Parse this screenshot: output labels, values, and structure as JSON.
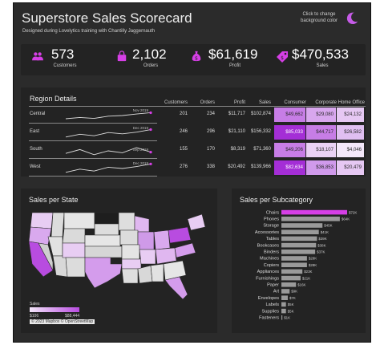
{
  "header": {
    "title": "Superstore Sales Scorecard",
    "subtitle": "Designed during Lovelytics training with Chantilly Jaggernauth",
    "bg_note": "Click to change background color"
  },
  "colors": {
    "accent": "#d63fe6",
    "panel": "#232323",
    "background": "#2b2b2b"
  },
  "kpis": [
    {
      "icon": "people-icon",
      "value": "573",
      "label": "Customers"
    },
    {
      "icon": "shopping-bag-icon",
      "value": "2,102",
      "label": "Orders"
    },
    {
      "icon": "money-bag-icon",
      "value": "$61,619",
      "label": "Profit"
    },
    {
      "icon": "price-tag-icon",
      "value": "$470,533",
      "label": "Sales"
    }
  ],
  "region": {
    "title": "Region Details",
    "columns": [
      "Customers",
      "Orders",
      "Profit",
      "Sales",
      "Consumer",
      "Corporate",
      "Home Office"
    ],
    "rows": [
      {
        "name": "Central",
        "peak": "Nov 2019",
        "customers": "201",
        "orders": "234",
        "profit": "$11,717",
        "sales": "$102,874",
        "consumer": "$49,662",
        "corporate": "$29,080",
        "home_office": "$24,132",
        "heat": [
          "#c77de6",
          "#d8a7ee",
          "#e6c8f3"
        ],
        "spark": [
          0.25,
          0.35,
          0.28,
          0.45,
          0.5,
          0.62,
          0.72
        ]
      },
      {
        "name": "East",
        "peak": "Dec 2019",
        "customers": "246",
        "orders": "296",
        "profit": "$21,110",
        "sales": "$156,332",
        "consumer": "$85,033",
        "corporate": "$44,717",
        "home_office": "$26,582",
        "heat": [
          "#a42ed6",
          "#c77de6",
          "#e0bff1"
        ],
        "spark": [
          0.2,
          0.42,
          0.3,
          0.55,
          0.45,
          0.58,
          0.78
        ]
      },
      {
        "name": "South",
        "peak": "Sep 2019",
        "customers": "155",
        "orders": "170",
        "profit": "$8,319",
        "sales": "$71,360",
        "consumer": "$49,206",
        "corporate": "$18,107",
        "home_office": "$4,046",
        "heat": [
          "#c77de6",
          "#ead2f5",
          "#f4e8fa"
        ],
        "spark": [
          0.3,
          0.6,
          0.2,
          0.5,
          0.35,
          0.75,
          0.4
        ]
      },
      {
        "name": "West",
        "peak": "Dec 2019",
        "customers": "276",
        "orders": "338",
        "profit": "$20,492",
        "sales": "$139,966",
        "consumer": "$82,634",
        "corporate": "$36,853",
        "home_office": "$20,479",
        "heat": [
          "#a42ed6",
          "#d09aeb",
          "#e6c8f3"
        ],
        "spark": [
          0.2,
          0.45,
          0.3,
          0.6,
          0.5,
          0.65,
          0.85
        ]
      }
    ]
  },
  "map": {
    "title": "Sales per State",
    "legend_title": "Sales",
    "legend_min": "$106",
    "legend_max": "$88,444",
    "attribution": "© 2023 Mapbox © OpenStreetMap"
  },
  "chart_data": {
    "type": "bar",
    "title": "Sales per Subcategory",
    "orientation": "horizontal",
    "categories": [
      "Chairs",
      "Phones",
      "Storage",
      "Accessories",
      "Tables",
      "Bookcases",
      "Binders",
      "Machines",
      "Copiers",
      "Appliances",
      "Furnishings",
      "Paper",
      "Art",
      "Envelopes",
      "Labels",
      "Supplies",
      "Fasteners"
    ],
    "values": [
      72,
      64,
      45,
      41,
      39,
      38,
      37,
      28,
      28,
      23,
      21,
      16,
      9,
      7,
      5,
      5,
      1
    ],
    "data_labels": [
      "$72K",
      "$64K",
      "$45K",
      "$41K",
      "$39K",
      "$38K",
      "$37K",
      "$28K",
      "$28K",
      "$23K",
      "$21K",
      "$16K",
      "$9K",
      "$7K",
      "$5K",
      "$5K",
      "$1K"
    ],
    "highlight_index": 0,
    "xlim": [
      0,
      72
    ]
  }
}
